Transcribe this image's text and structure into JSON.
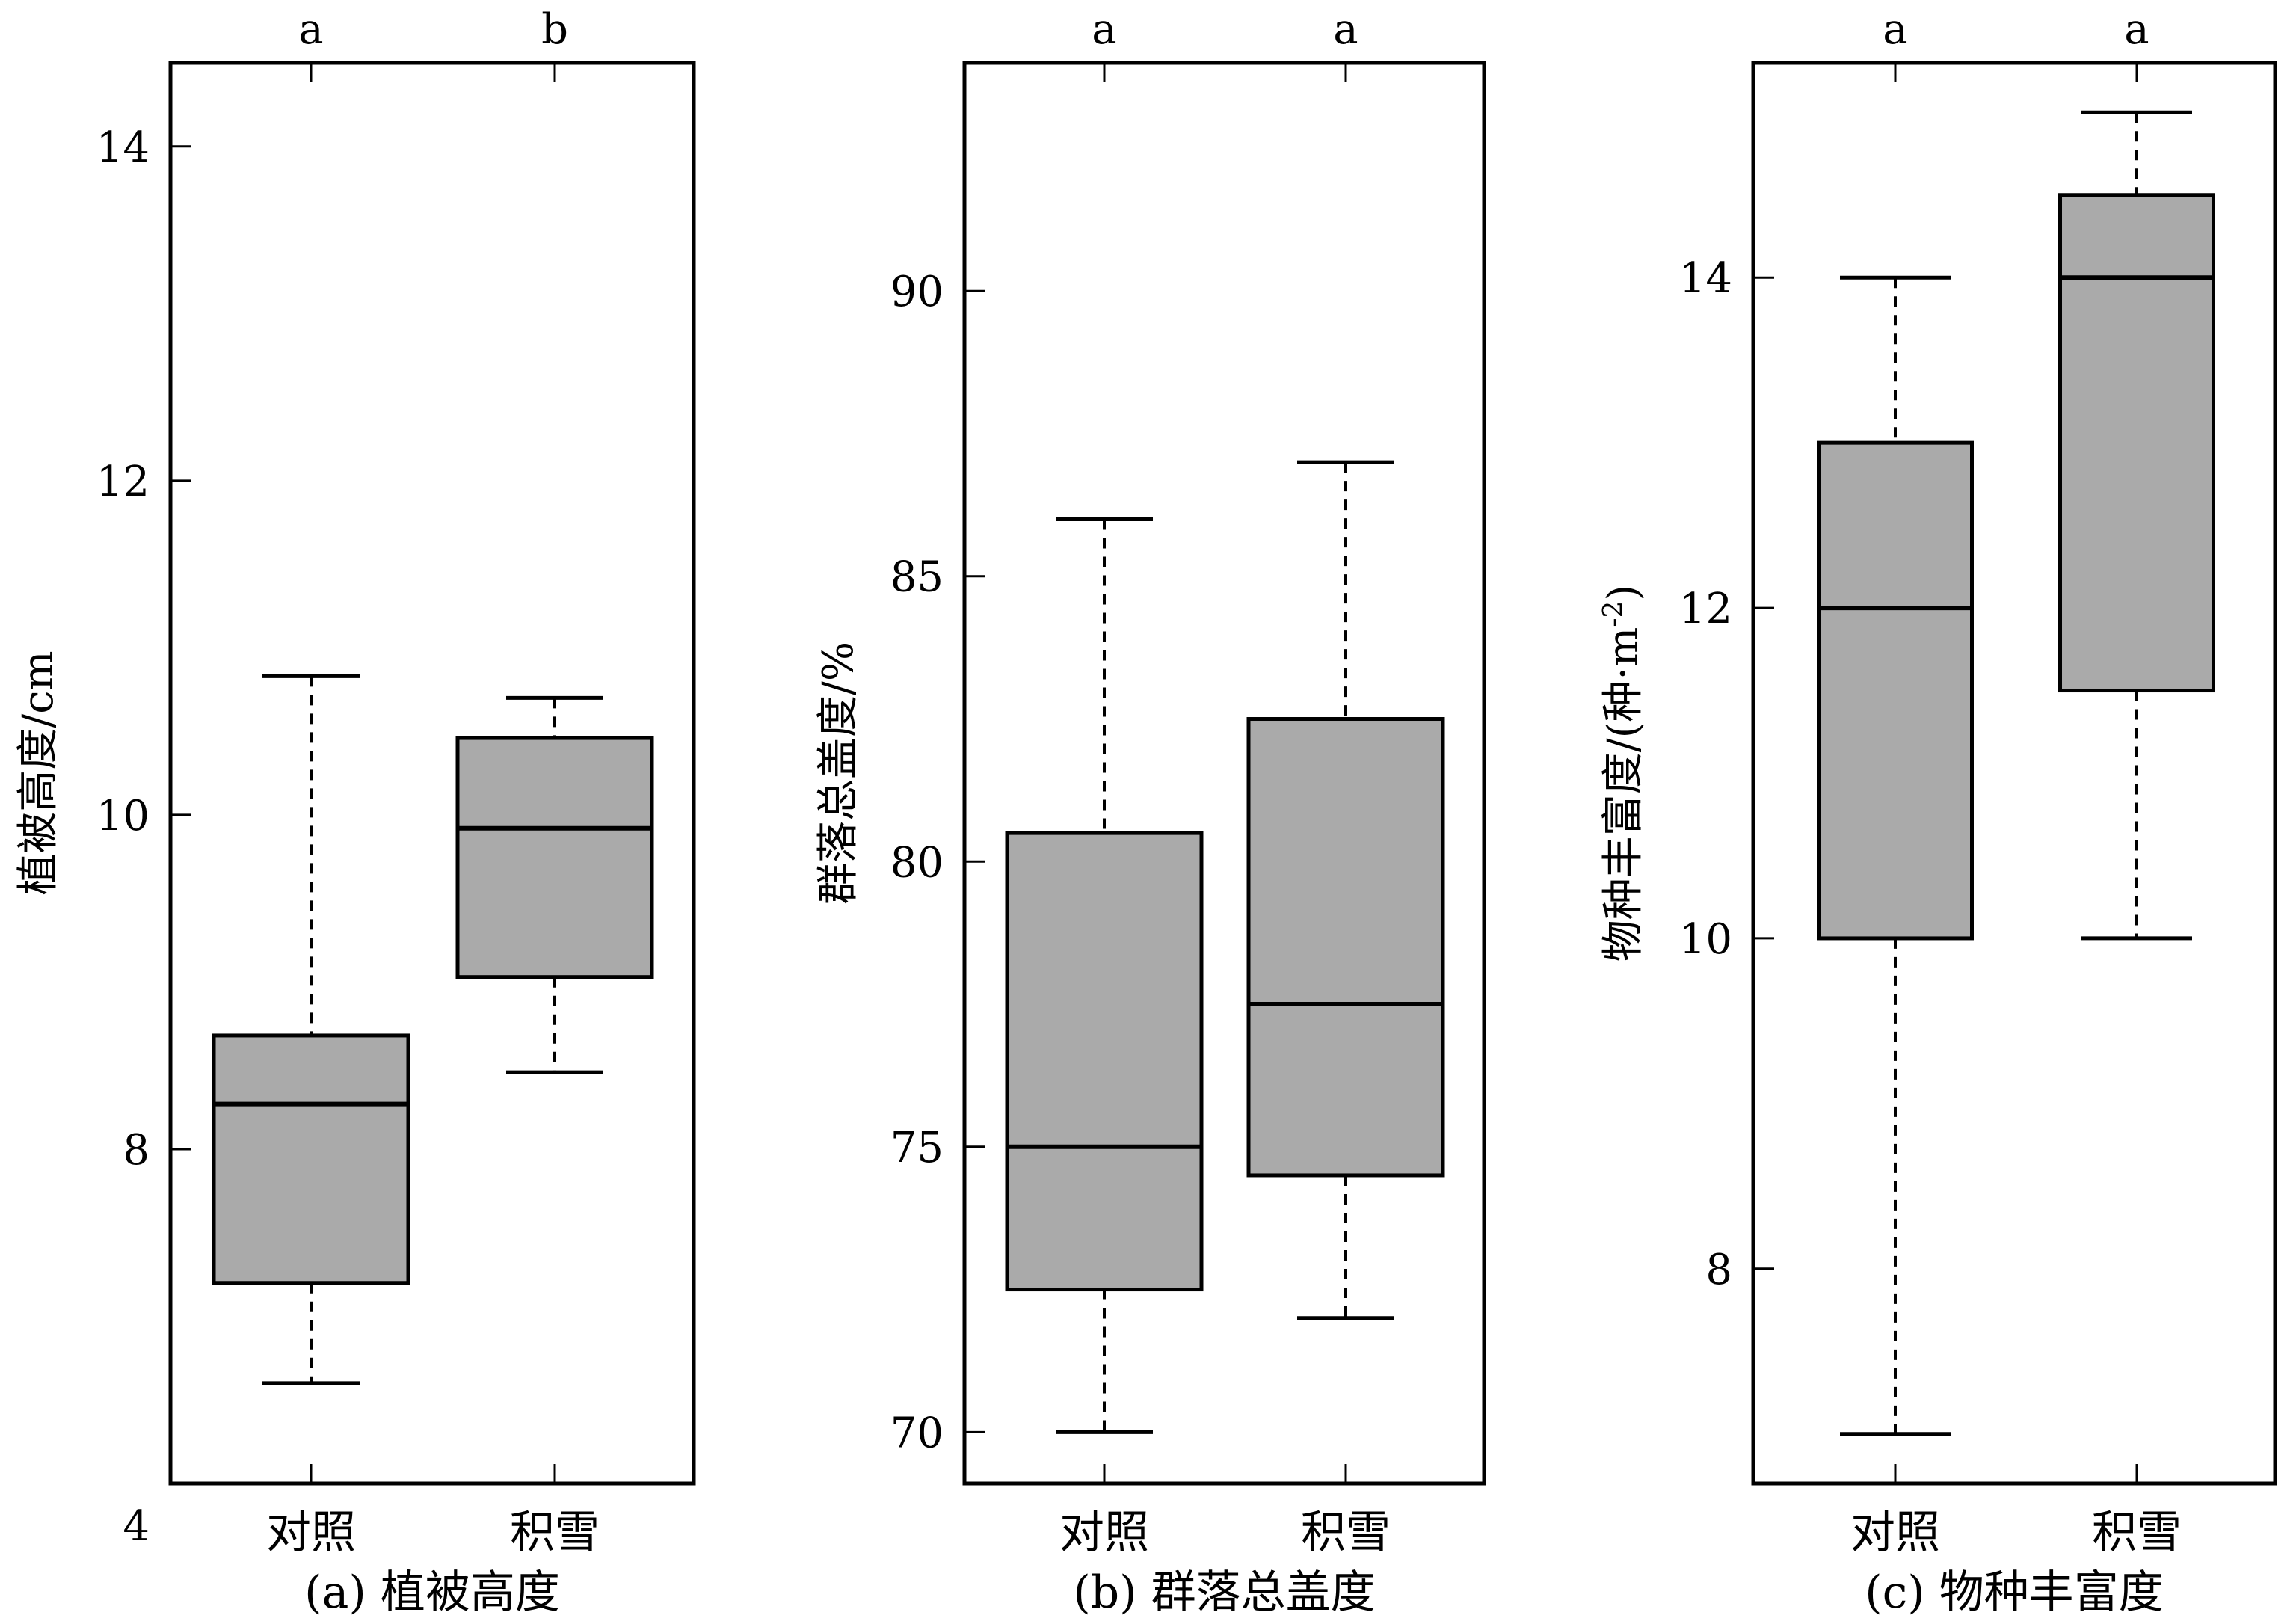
{
  "figure": {
    "box_fill": "#aaaaaa",
    "line_color": "#000000"
  },
  "chart_data": [
    {
      "type": "box",
      "caption": "(a) 植被高度",
      "ylabel": "植被高度/cm",
      "categories": [
        "对照",
        "积雪"
      ],
      "significance": [
        "a",
        "b"
      ],
      "ylim": [
        6.0,
        14.5
      ],
      "yticks": [
        4,
        8,
        10,
        12,
        14
      ],
      "boxes": [
        {
          "name": "对照",
          "whisker_low": 6.6,
          "q1": 7.2,
          "median": 8.27,
          "q3": 8.68,
          "whisker_high": 10.83
        },
        {
          "name": "积雪",
          "whisker_low": 8.46,
          "q1": 9.03,
          "median": 9.92,
          "q3": 10.46,
          "whisker_high": 10.7
        }
      ]
    },
    {
      "type": "box",
      "caption": "(b) 群落总盖度",
      "ylabel": "群落总盖度/%",
      "categories": [
        "对照",
        "积雪"
      ],
      "significance": [
        "a",
        "a"
      ],
      "ylim": [
        69.1,
        94.0
      ],
      "yticks": [
        70,
        75,
        80,
        85,
        90
      ],
      "boxes": [
        {
          "name": "对照",
          "whisker_low": 70,
          "q1": 72.5,
          "median": 75,
          "q3": 80.5,
          "whisker_high": 86
        },
        {
          "name": "积雪",
          "whisker_low": 72,
          "q1": 74.5,
          "median": 77.5,
          "q3": 82.5,
          "whisker_high": 87
        }
      ]
    },
    {
      "type": "box",
      "caption": "(c) 物种丰富度",
      "ylabel": "物种丰富度/(种·m",
      "ylabel_sup": "-2",
      "ylabel_tail": ")",
      "categories": [
        "对照",
        "积雪"
      ],
      "significance": [
        "a",
        "a"
      ],
      "ylim": [
        6.7,
        15.3
      ],
      "yticks": [
        8,
        10,
        12,
        14
      ],
      "boxes": [
        {
          "name": "对照",
          "whisker_low": 7,
          "q1": 10,
          "median": 12,
          "q3": 13,
          "whisker_high": 14
        },
        {
          "name": "积雪",
          "whisker_low": 10,
          "q1": 11.5,
          "median": 14,
          "q3": 14.5,
          "whisker_high": 15
        }
      ]
    }
  ]
}
